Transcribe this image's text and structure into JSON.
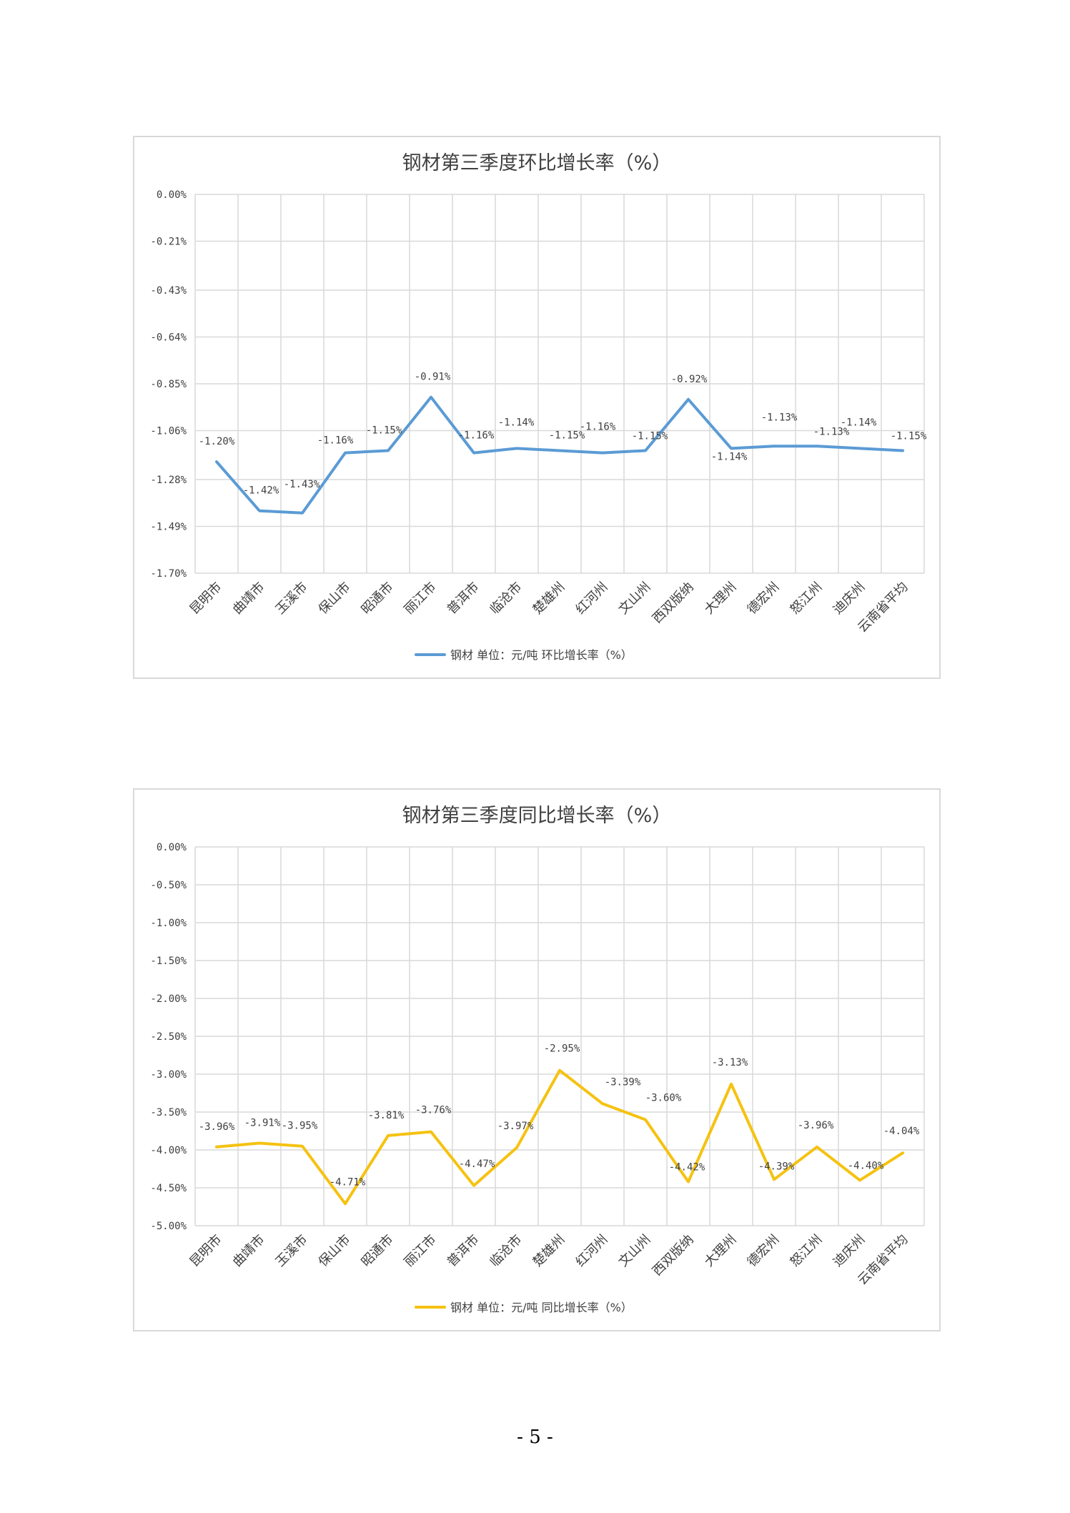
{
  "chart_data": [
    {
      "type": "line",
      "title": "钢材第三季度环比增长率（%）",
      "categories": [
        "昆明市",
        "曲靖市",
        "玉溪市",
        "保山市",
        "昭通市",
        "丽江市",
        "普洱市",
        "临沧市",
        "楚雄州",
        "红河州",
        "文山州",
        "西双版纳",
        "大理州",
        "德宏州",
        "怒江州",
        "迪庆州",
        "云南省平均"
      ],
      "series": [
        {
          "name": "钢材 单位：元/吨 环比增长率（%）",
          "values": [
            -1.2,
            -1.42,
            -1.43,
            -1.16,
            -1.15,
            -0.91,
            -1.16,
            -1.14,
            -1.15,
            -1.16,
            -1.15,
            -0.92,
            -1.14,
            -1.13,
            -1.13,
            -1.14,
            -1.15
          ],
          "labels": [
            "-1.20%",
            "-1.42%",
            "-1.43%",
            "-1.16%",
            "-1.15%",
            "-0.91%",
            "-1.16%",
            "-1.14%",
            "-1.15%",
            "-1.16%",
            "-1.15%",
            "-0.92%",
            "-1.14%",
            "-1.13%",
            "-1.13%",
            "-1.14%",
            "-1.15%"
          ],
          "color": "#5b9bd5"
        }
      ],
      "ylim": [
        -1.7,
        0.0
      ],
      "yticks": [
        0.0,
        -0.21,
        -0.43,
        -0.64,
        -0.85,
        -1.06,
        -1.28,
        -1.49,
        -1.7
      ],
      "ytick_labels": [
        "0.00%",
        "-0.21%",
        "-0.43%",
        "-0.64%",
        "-0.85%",
        "-1.06%",
        "-1.28%",
        "-1.49%",
        "-1.70%"
      ],
      "grid": true,
      "legend": "bottom"
    },
    {
      "type": "line",
      "title": "钢材第三季度同比增长率（%）",
      "categories": [
        "昆明市",
        "曲靖市",
        "玉溪市",
        "保山市",
        "昭通市",
        "丽江市",
        "普洱市",
        "临沧市",
        "楚雄州",
        "红河州",
        "文山州",
        "西双版纳",
        "大理州",
        "德宏州",
        "怒江州",
        "迪庆州",
        "云南省平均"
      ],
      "series": [
        {
          "name": "钢材 单位：元/吨 同比增长率（%）",
          "values": [
            -3.96,
            -3.91,
            -3.95,
            -4.71,
            -3.81,
            -3.76,
            -4.47,
            -3.97,
            -2.95,
            -3.39,
            -3.6,
            -4.42,
            -3.13,
            -4.39,
            -3.96,
            -4.4,
            -4.04
          ],
          "labels": [
            "-3.96%",
            "-3.91%",
            "-3.95%",
            "-4.71%",
            "-3.81%",
            "-3.76%",
            "-4.47%",
            "-3.97%",
            "-2.95%",
            "-3.39%",
            "-3.60%",
            "-4.42%",
            "-3.13%",
            "-4.39%",
            "-3.96%",
            "-4.40%",
            "-4.04%"
          ],
          "color": "#f5c211"
        }
      ],
      "ylim": [
        -5.0,
        0.0
      ],
      "yticks": [
        0.0,
        -0.5,
        -1.0,
        -1.5,
        -2.0,
        -2.5,
        -3.0,
        -3.5,
        -4.0,
        -4.5,
        -5.0
      ],
      "ytick_labels": [
        "0.00%",
        "-0.50%",
        "-1.00%",
        "-1.50%",
        "-2.00%",
        "-2.50%",
        "-3.00%",
        "-3.50%",
        "-4.00%",
        "-4.50%",
        "-5.00%"
      ],
      "grid": true,
      "legend": "bottom"
    }
  ],
  "page_number": "- 5 -"
}
